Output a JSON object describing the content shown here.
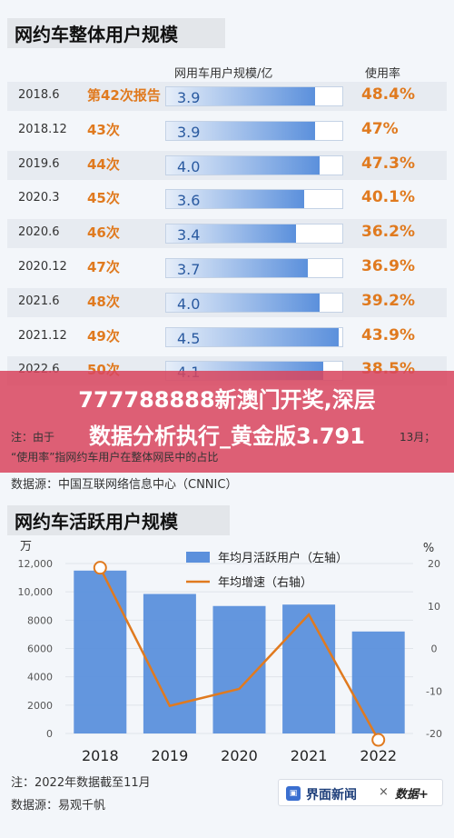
{
  "chart_data": [
    {
      "type": "table",
      "title": "网约车整体用户规模",
      "columns": [
        "网用车用户规模/亿",
        "使用率"
      ],
      "rows": [
        {
          "date": "2018.6",
          "period": "第42次报告",
          "users": 3.9,
          "users_label": "3.9",
          "rate": "48.4%"
        },
        {
          "date": "2018.12",
          "period": "43次",
          "users": 3.9,
          "users_label": "3.9",
          "rate": "47%"
        },
        {
          "date": "2019.6",
          "period": "44次",
          "users": 4.0,
          "users_label": "4.0",
          "rate": "47.3%"
        },
        {
          "date": "2020.3",
          "period": "45次",
          "users": 3.6,
          "users_label": "3.6",
          "rate": "40.1%"
        },
        {
          "date": "2020.6",
          "period": "46次",
          "users": 3.4,
          "users_label": "3.4",
          "rate": "36.2%"
        },
        {
          "date": "2020.12",
          "period": "47次",
          "users": 3.7,
          "users_label": "3.7",
          "rate": "36.9%"
        },
        {
          "date": "2021.6",
          "period": "48次",
          "users": 4.0,
          "users_label": "4.0",
          "rate": "39.2%"
        },
        {
          "date": "2021.12",
          "period": "49次",
          "users": 4.5,
          "users_label": "4.5",
          "rate": "43.9%"
        },
        {
          "date": "2022.6",
          "period": "50次",
          "users": 4.1,
          "users_label": "4.1",
          "rate": "38.5%"
        }
      ],
      "notes": [
        "注：由于",
        "13月；",
        "“使用率”指网约车用户在整体网民中的占比"
      ],
      "source": "数据源：中国互联网络信息中心（CNNIC）"
    },
    {
      "type": "bar",
      "title": "网约车活跃用户规模",
      "categories": [
        "2018",
        "2019",
        "2020",
        "2021",
        "2022"
      ],
      "series": [
        {
          "name": "年均月活跃用户（左轴）",
          "type": "bar",
          "values": [
            11500,
            9850,
            9000,
            9100,
            7200
          ],
          "color": "#5b90dc"
        },
        {
          "name": "年均增速（右轴）",
          "type": "line",
          "values": [
            19,
            -13.5,
            -9.5,
            8,
            -21.5
          ],
          "color": "#e07a1f"
        }
      ],
      "y_left_unit": "万",
      "y_right_unit": "%",
      "y_left_ticks": [
        "12,000",
        "10,000",
        "8000",
        "6000",
        "4000",
        "2000",
        "0"
      ],
      "y_right_ticks": [
        "20",
        "10",
        "0",
        "-10",
        "-20"
      ],
      "ylim_left": [
        0,
        12000
      ],
      "ylim_right": [
        -20,
        20
      ],
      "legend_position": "top"
    }
  ],
  "banner": {
    "line1": "777788888新澳门开奖,深层",
    "line2": "数据分析执行_黄金版3.791"
  },
  "footer": {
    "note": "注：2022年数据截至11月",
    "source": "数据源：易观千帆"
  },
  "logo": {
    "brand": "界面新闻",
    "cross": "×",
    "seal": "数据+"
  },
  "colors": {
    "orange": "#e07a1f",
    "blue": "#5b90dc",
    "banner": "#d8465e"
  }
}
